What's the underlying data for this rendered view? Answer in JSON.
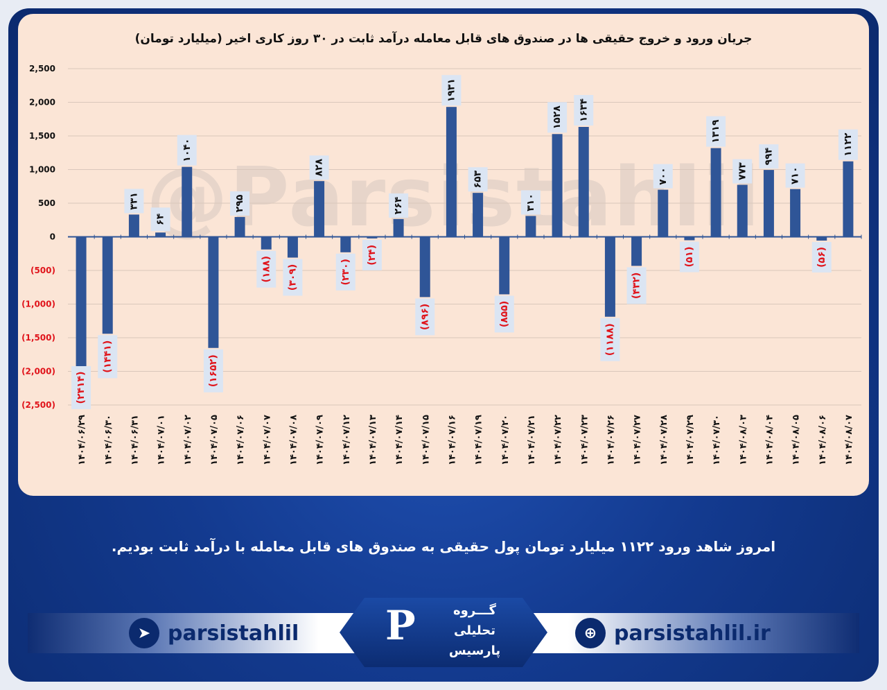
{
  "chart_data": {
    "type": "bar",
    "title": "جریان ورود و خروج حقیقی ها در صندوق های قابل معامله درآمد ثابت در ۳۰ روز کاری اخیر (میلیارد تومان)",
    "ylim": [
      -2500,
      2500
    ],
    "yticks": [
      2500,
      2000,
      1500,
      1000,
      500,
      0,
      -500,
      -1000,
      -1500,
      -2000,
      -2500
    ],
    "ytick_labels": [
      "2,500",
      "2,000",
      "1,500",
      "1,000",
      "500",
      "0",
      "(500)",
      "(1,000)",
      "(1,500)",
      "(2,000)",
      "(2,500)"
    ],
    "categories": [
      "۱۴۰۴/۰۶/۲۹",
      "۱۴۰۴/۰۶/۳۰",
      "۱۴۰۴/۰۶/۳۱",
      "۱۴۰۴/۰۷/۰۱",
      "۱۴۰۴/۰۷/۰۲",
      "۱۴۰۴/۰۷/۰۵",
      "۱۴۰۴/۰۷/۰۶",
      "۱۴۰۴/۰۷/۰۷",
      "۱۴۰۴/۰۷/۰۸",
      "۱۴۰۴/۰۷/۰۹",
      "۱۴۰۴/۰۷/۱۲",
      "۱۴۰۴/۰۷/۱۳",
      "۱۴۰۴/۰۷/۱۴",
      "۱۴۰۴/۰۷/۱۵",
      "۱۴۰۴/۰۷/۱۶",
      "۱۴۰۴/۰۷/۱۹",
      "۱۴۰۴/۰۷/۲۰",
      "۱۴۰۴/۰۷/۲۱",
      "۱۴۰۴/۰۷/۲۲",
      "۱۴۰۴/۰۷/۲۳",
      "۱۴۰۴/۰۷/۲۶",
      "۱۴۰۴/۰۷/۲۷",
      "۱۴۰۴/۰۷/۲۸",
      "۱۴۰۴/۰۷/۲۹",
      "۱۴۰۴/۰۷/۳۰",
      "۱۴۰۴/۰۸/۰۳",
      "۱۴۰۴/۰۸/۰۴",
      "۱۴۰۴/۰۸/۰۵",
      "۱۴۰۴/۰۸/۰۶",
      "۱۴۰۴/۰۸/۰۷"
    ],
    "values": [
      -2414,
      -1441,
      331,
      64,
      1040,
      -1652,
      295,
      -188,
      -309,
      828,
      -230,
      -24,
      264,
      -896,
      1931,
      653,
      -855,
      310,
      1528,
      1634,
      -1188,
      -432,
      700,
      -51,
      1319,
      773,
      994,
      710,
      -56,
      1122
    ],
    "data_labels": [
      "(۲۴۱۴)",
      "(۱۴۴۱)",
      "۳۳۱",
      "۶۴",
      "۱۰۴۰",
      "(۱۶۵۲)",
      "۲۹۵",
      "(۱۸۸)",
      "(۳۰۹)",
      "۸۲۸",
      "(۲۳۰)",
      "(۲۴)",
      "۲۶۴",
      "(۸۹۶)",
      "۱۹۳۱",
      "۶۵۳",
      "(۸۵۵)",
      "۳۱۰",
      "۱۵۲۸",
      "۱۶۳۴",
      "(۱۱۸۸)",
      "(۴۳۲)",
      "۷۰۰",
      "(۵۱)",
      "۱۳۱۹",
      "۷۷۳",
      "۹۹۴",
      "۷۱۰",
      "(۵۶)",
      "۱۱۲۲"
    ],
    "grid": true,
    "bar_color": "#2f5597",
    "negative_label_color": "#e0141b"
  },
  "watermark": "@Parsistahlil",
  "caption": "امروز شاهد ورود ۱۱۲۲ میلیارد تومان پول حقیقی به صندوق های قابل معامله با درآمد ثابت بودیم.",
  "footer": {
    "telegram": "parsistahlil",
    "website": "parsistahlil.ir",
    "logo_line1": "گـــروه",
    "logo_line2": "تحلیلی",
    "logo_line3": "پارسیس"
  },
  "icons": {
    "telegram": "telegram-icon",
    "website": "globe-icon"
  },
  "colors": {
    "panel": "#fbe5d6",
    "background": "#133a8f",
    "bar": "#2f5597"
  }
}
